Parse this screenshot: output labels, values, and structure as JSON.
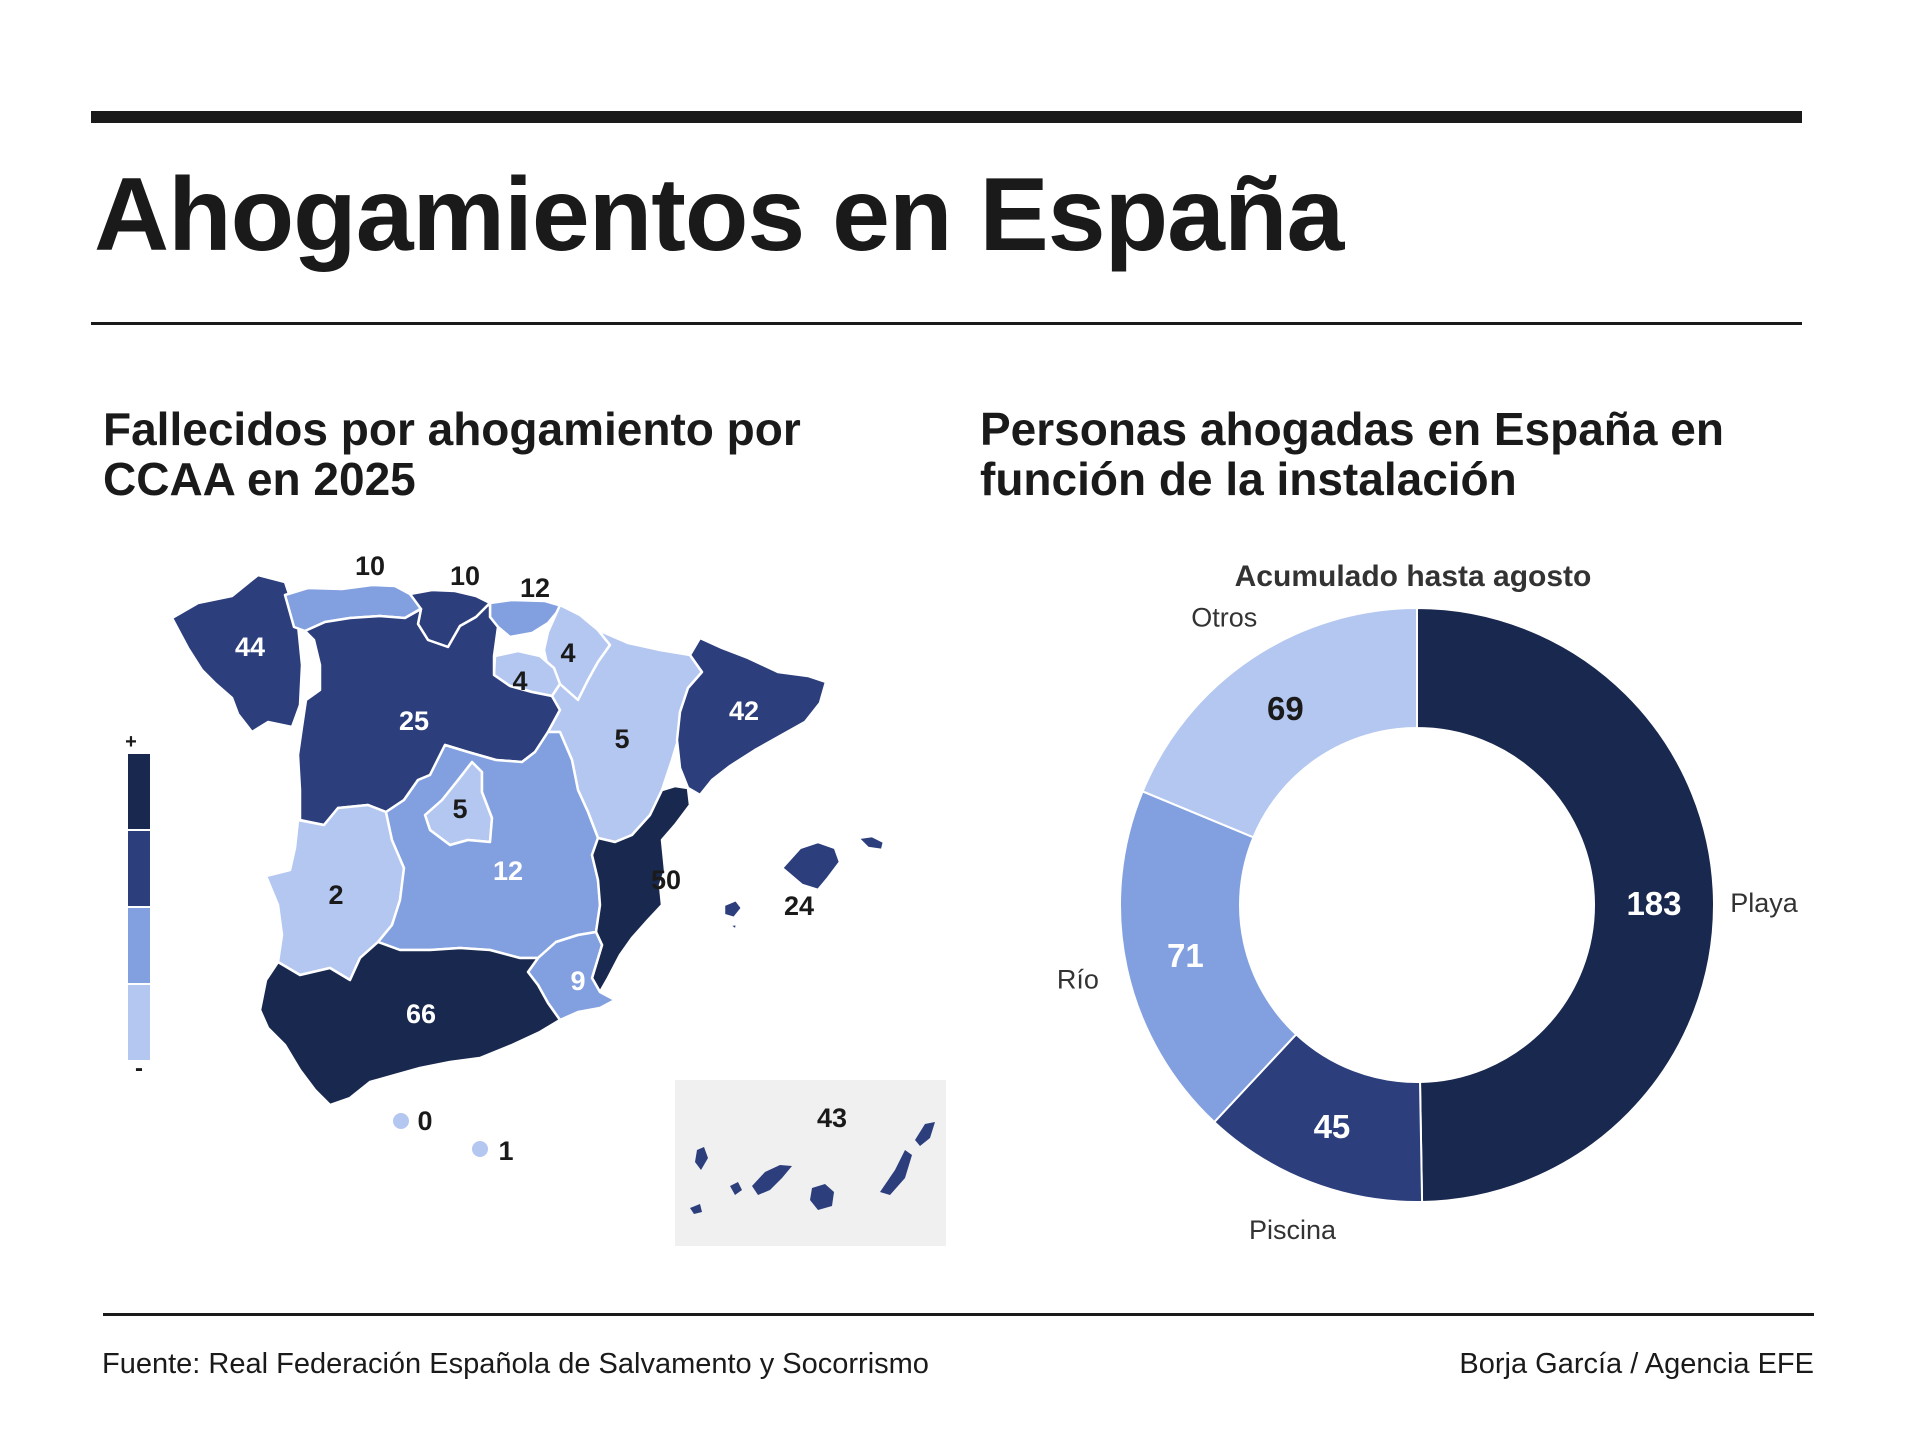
{
  "header": {
    "title": "Ahogamientos en España"
  },
  "map_section": {
    "subtitle": "Fallecidos por ahogamiento por CCAA en 2025",
    "legend": {
      "plus": "+",
      "minus": "-"
    },
    "regions": [
      {
        "name": "Galicia",
        "value": "44"
      },
      {
        "name": "Asturias",
        "value": "10"
      },
      {
        "name": "Cantabria",
        "value": "10"
      },
      {
        "name": "País Vasco",
        "value": "12"
      },
      {
        "name": "Navarra",
        "value": "4"
      },
      {
        "name": "La Rioja",
        "value": "4"
      },
      {
        "name": "Castilla y León",
        "value": "25"
      },
      {
        "name": "Aragón",
        "value": "5"
      },
      {
        "name": "Cataluña",
        "value": "42"
      },
      {
        "name": "Madrid",
        "value": "5"
      },
      {
        "name": "Extremadura",
        "value": "2"
      },
      {
        "name": "Castilla-La Mancha",
        "value": "12"
      },
      {
        "name": "Comunidad Valenciana",
        "value": "50"
      },
      {
        "name": "Baleares",
        "value": "24"
      },
      {
        "name": "Murcia",
        "value": "9"
      },
      {
        "name": "Andalucía",
        "value": "66"
      },
      {
        "name": "Ceuta",
        "value": "0"
      },
      {
        "name": "Melilla",
        "value": "1"
      },
      {
        "name": "Canarias",
        "value": "43"
      }
    ],
    "colors": {
      "level1": "#b4c7f0",
      "level2": "#82a0e0",
      "level3": "#2c3e7c",
      "level4": "#19284e"
    }
  },
  "donut_section": {
    "subtitle": "Personas ahogadas en España en función de la instalación",
    "chart_title": "Acumulado hasta agosto"
  },
  "chart_data": {
    "type": "pie",
    "title": "Acumulado hasta agosto",
    "categories": [
      "Playa",
      "Piscina",
      "Río",
      "Otros"
    ],
    "values": [
      183,
      45,
      71,
      69
    ],
    "colors": [
      "#19284e",
      "#2c3e7c",
      "#82a0e0",
      "#b4c7f0"
    ]
  },
  "footer": {
    "source": "Fuente: Real Federación Española de Salvamento y Socorrismo",
    "credit": "Borja García / Agencia EFE"
  }
}
